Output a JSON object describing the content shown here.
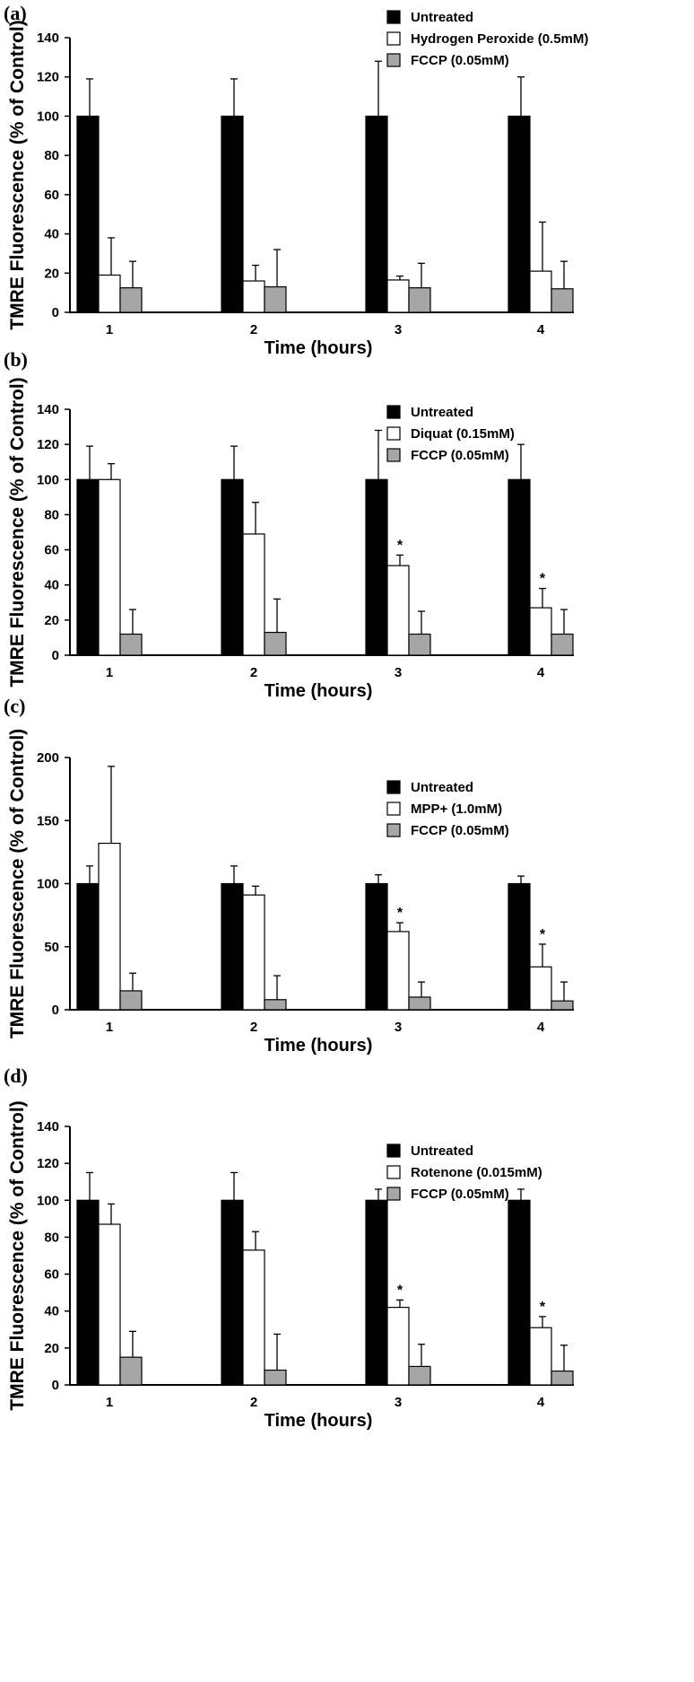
{
  "colors": {
    "untreated": "#000000",
    "treatment": "#ffffff",
    "fccp": "#a6a6a6",
    "stroke": "#000000"
  },
  "chart_data": [
    {
      "type": "bar",
      "panel_label": "(a)",
      "categories": [
        "1",
        "2",
        "3",
        "4"
      ],
      "xlabel": "Time (hours)",
      "ylabel": "TMRE Fluorescence (% of Control)",
      "ylim": [
        0,
        140
      ],
      "yticks": [
        "0",
        "20",
        "40",
        "60",
        "80",
        "100",
        "120",
        "140"
      ],
      "series": [
        {
          "name": "Untreated",
          "key": "untreated",
          "values": [
            100,
            100,
            100,
            100
          ],
          "errors": [
            19,
            19,
            28,
            20
          ]
        },
        {
          "name": "Hydrogen Peroxide (0.5mM)",
          "key": "treatment",
          "values": [
            19,
            16,
            16.5,
            21
          ],
          "errors": [
            19,
            8,
            2,
            25
          ]
        },
        {
          "name": "FCCP (0.05mM)",
          "key": "fccp",
          "values": [
            12.5,
            13,
            12.5,
            12
          ],
          "errors": [
            13.5,
            19,
            12.5,
            14
          ]
        }
      ],
      "annotations": []
    },
    {
      "type": "bar",
      "panel_label": "(b)",
      "categories": [
        "1",
        "2",
        "3",
        "4"
      ],
      "xlabel": "Time (hours)",
      "ylabel": "TMRE Fluorescence (% of Control)",
      "ylim": [
        0,
        140
      ],
      "yticks": [
        "0",
        "20",
        "40",
        "60",
        "80",
        "100",
        "120",
        "140"
      ],
      "series": [
        {
          "name": "Untreated",
          "key": "untreated",
          "values": [
            100,
            100,
            100,
            100
          ],
          "errors": [
            19,
            19,
            28,
            20
          ]
        },
        {
          "name": "Diquat (0.15mM)",
          "key": "treatment",
          "values": [
            100,
            69,
            51,
            27
          ],
          "errors": [
            9,
            18,
            6,
            11
          ]
        },
        {
          "name": "FCCP (0.05mM)",
          "key": "fccp",
          "values": [
            12,
            13,
            12,
            12
          ],
          "errors": [
            14,
            19,
            13,
            14
          ]
        }
      ],
      "annotations": [
        {
          "text": "*",
          "category": "3",
          "series": "treatment"
        },
        {
          "text": "*",
          "category": "4",
          "series": "treatment"
        }
      ]
    },
    {
      "type": "bar",
      "panel_label": "(c)",
      "categories": [
        "1",
        "2",
        "3",
        "4"
      ],
      "xlabel": "Time (hours)",
      "ylabel": "TMRE Fluorescence (% of Control)",
      "ylim": [
        0,
        200
      ],
      "yticks": [
        "0",
        "50",
        "100",
        "150",
        "200"
      ],
      "series": [
        {
          "name": "Untreated",
          "key": "untreated",
          "values": [
            100,
            100,
            100,
            100
          ],
          "errors": [
            14,
            14,
            7,
            6
          ]
        },
        {
          "name": "MPP+ (1.0mM)",
          "key": "treatment",
          "values": [
            132,
            91,
            62,
            34
          ],
          "errors": [
            61,
            7,
            7,
            18
          ]
        },
        {
          "name": "FCCP (0.05mM)",
          "key": "fccp",
          "values": [
            15,
            8,
            10,
            7
          ],
          "errors": [
            14,
            19,
            12,
            15
          ]
        }
      ],
      "annotations": [
        {
          "text": "*",
          "category": "3",
          "series": "treatment"
        },
        {
          "text": "*",
          "category": "4",
          "series": "treatment"
        }
      ]
    },
    {
      "type": "bar",
      "panel_label": "(d)",
      "categories": [
        "1",
        "2",
        "3",
        "4"
      ],
      "xlabel": "Time (hours)",
      "ylabel": "TMRE Fluorescence (% of Control)",
      "ylim": [
        0,
        140
      ],
      "yticks": [
        "0",
        "20",
        "40",
        "60",
        "80",
        "100",
        "120",
        "140"
      ],
      "series": [
        {
          "name": "Untreated",
          "key": "untreated",
          "values": [
            100,
            100,
            100,
            100
          ],
          "errors": [
            15,
            15,
            6,
            6
          ]
        },
        {
          "name": "Rotenone (0.015mM)",
          "key": "treatment",
          "values": [
            87,
            73,
            42,
            31
          ],
          "errors": [
            11,
            10,
            4,
            6
          ]
        },
        {
          "name": "FCCP (0.05mM)",
          "key": "fccp",
          "values": [
            15,
            8,
            10,
            7.5
          ],
          "errors": [
            14,
            19.5,
            12,
            14
          ]
        }
      ],
      "annotations": [
        {
          "text": "*",
          "category": "3",
          "series": "treatment"
        },
        {
          "text": "*",
          "category": "4",
          "series": "treatment"
        }
      ]
    }
  ]
}
